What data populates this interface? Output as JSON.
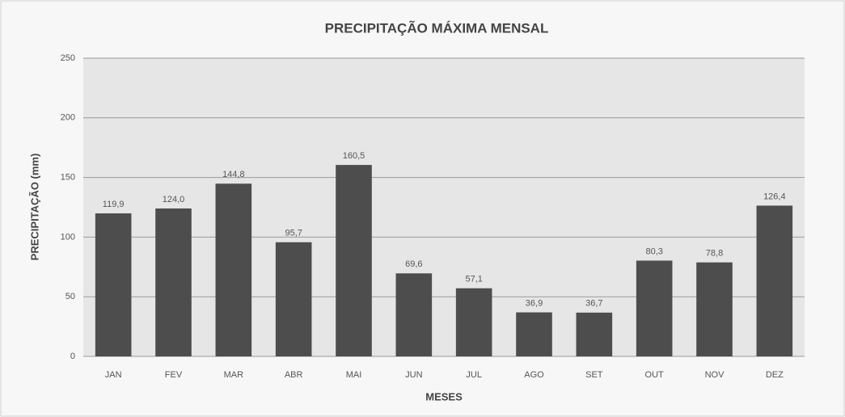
{
  "chart_data": {
    "type": "bar",
    "title": "PRECIPITAÇÃO MÁXIMA MENSAL",
    "y_label": "PRECIPITAÇÃO (mm)",
    "x_label": "MESES",
    "categories": [
      "JAN",
      "FEV",
      "MAR",
      "ABR",
      "MAI",
      "JUN",
      "JUL",
      "AGO",
      "SET",
      "OUT",
      "NOV",
      "DEZ"
    ],
    "values": [
      119.9,
      124.0,
      144.8,
      95.7,
      160.5,
      69.6,
      57.1,
      36.9,
      36.7,
      80.3,
      78.8,
      126.4
    ],
    "value_labels": [
      "119,9",
      "124,0",
      "144,8",
      "95,7",
      "160,5",
      "69,6",
      "57,1",
      "36,9",
      "36,7",
      "80,3",
      "78,8",
      "126,4"
    ],
    "color": "#4d4d4d",
    "ylim": [
      0,
      250
    ],
    "yticks": [
      0,
      50,
      100,
      150,
      200,
      250
    ],
    "grid": true
  }
}
